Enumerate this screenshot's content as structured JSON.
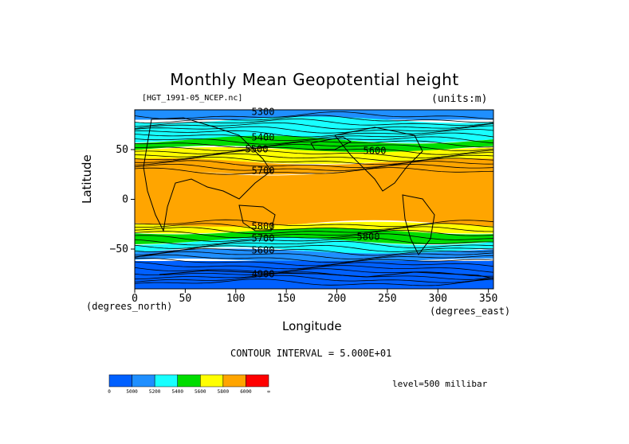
{
  "chart_data": {
    "type": "heatmap",
    "title": "Monthly Mean Geopotential height",
    "source_label": "[HGT_1991-05_NCEP.nc]",
    "units_label": "(units:m)",
    "xlabel": "Longitude",
    "ylabel": "Latitude",
    "x_units": "(degrees_east)",
    "y_units": "(degrees_north)",
    "xlim": [
      0,
      355
    ],
    "ylim": [
      -90,
      90
    ],
    "x_ticks": [
      0,
      50,
      100,
      150,
      200,
      250,
      300,
      350
    ],
    "y_ticks": [
      50,
      0,
      -50
    ],
    "contour_interval_text": "CONTOUR INTERVAL = 5.000E+01",
    "level_text": "level=500 millibar",
    "contour_labels": [
      "5300",
      "5400",
      "5500",
      "5600",
      "5700",
      "5800",
      "5800",
      "5700",
      "5600",
      "4900"
    ],
    "bands": [
      {
        "lat_top": 90,
        "lat_bottom": 80,
        "level": 5300,
        "color": "#1f8fff"
      },
      {
        "lat_top": 80,
        "lat_bottom": 60,
        "level": 5300,
        "color": "#18ffff"
      },
      {
        "lat_top": 60,
        "lat_bottom": 50,
        "level": 5400,
        "color": "#00dd00"
      },
      {
        "lat_top": 50,
        "lat_bottom": 38,
        "level": 5600,
        "color": "#ffff00"
      },
      {
        "lat_top": 38,
        "lat_bottom": 28,
        "level": 5800,
        "color": "#ffa500"
      },
      {
        "lat_top": 28,
        "lat_bottom": -25,
        "level": 5800,
        "color": "#ffa500"
      },
      {
        "lat_top": -25,
        "lat_bottom": -32,
        "level": 5700,
        "color": "#ffff00"
      },
      {
        "lat_top": -32,
        "lat_bottom": -42,
        "level": 5600,
        "color": "#00dd00"
      },
      {
        "lat_top": -42,
        "lat_bottom": -52,
        "level": 5400,
        "color": "#18ffff"
      },
      {
        "lat_top": -52,
        "lat_bottom": -62,
        "level": 5200,
        "color": "#1f8fff"
      },
      {
        "lat_top": -62,
        "lat_bottom": -90,
        "level": 5000,
        "color": "#0060ff"
      }
    ],
    "colorbar": {
      "colors": [
        "#0060ff",
        "#1f8fff",
        "#18ffff",
        "#00dd00",
        "#ffff00",
        "#ffa500",
        "#ff0000"
      ],
      "ticks": [
        "0",
        "5000",
        "5200",
        "5400",
        "5600",
        "5800",
        "6000",
        "∞"
      ]
    }
  }
}
